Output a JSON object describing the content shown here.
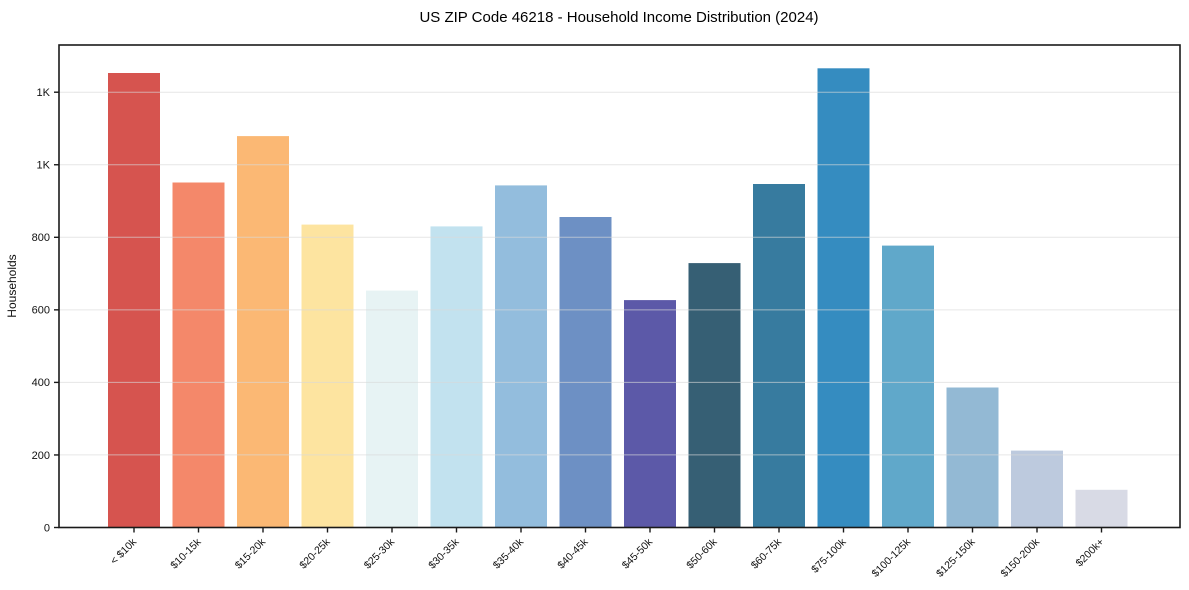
{
  "header": {
    "title": "US ZIP Code 46218 - Household Income Distribution (2024)"
  },
  "chart_data": {
    "type": "bar",
    "title": "US ZIP Code 46218 - Household Income Distribution (2024)",
    "xlabel": "",
    "ylabel": "Households",
    "categories": [
      "< $10k",
      "$10-15k",
      "$15-20k",
      "$20-25k",
      "$25-30k",
      "$30-35k",
      "$35-40k",
      "$40-45k",
      "$45-50k",
      "$50-60k",
      "$60-75k",
      "$75-100k",
      "$100-125k",
      "$125-150k",
      "$150-200k",
      "$200k+"
    ],
    "values": [
      1253,
      951,
      1079,
      835,
      653,
      830,
      943,
      856,
      627,
      729,
      947,
      1266,
      777,
      386,
      212,
      104
    ],
    "bar_colors": [
      "#d6544f",
      "#f4886a",
      "#fbb874",
      "#fde4a0",
      "#e7f3f4",
      "#c2e2ef",
      "#93bddd",
      "#6d90c4",
      "#5c59a8",
      "#365f74",
      "#377b9f",
      "#358cc0",
      "#60a8ca",
      "#93b9d4",
      "#bdcade",
      "#d8dae5"
    ],
    "ylim": [
      0,
      1330
    ],
    "yticks": {
      "values": [
        0,
        200,
        400,
        600,
        800,
        1000,
        1200
      ],
      "labels": [
        "0",
        "200",
        "400",
        "600",
        "800",
        "1K",
        "1K"
      ]
    },
    "grid": "horizontal",
    "legend": "none",
    "colors": {
      "background": "#ffffff",
      "axis": "#1a1a1a",
      "grid": "#d9d9d9",
      "tick_label": "#111111"
    }
  }
}
